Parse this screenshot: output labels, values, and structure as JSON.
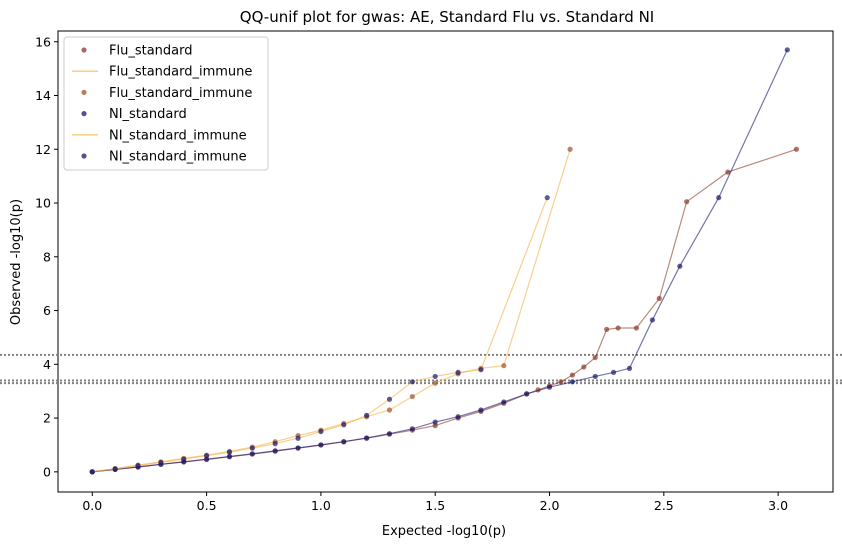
{
  "chart_data": {
    "type": "scatter",
    "title": "QQ-unif plot for gwas: AE, Standard Flu vs. Standard NI",
    "xlabel": "Expected -log10(p)",
    "ylabel": "Observed -log10(p)",
    "xlim": [
      -0.15,
      3.24
    ],
    "ylim": [
      -0.75,
      16.4
    ],
    "xticks": [
      0.0,
      0.5,
      1.0,
      1.5,
      2.0,
      2.5,
      3.0
    ],
    "xtick_labels": [
      "0.0",
      "0.5",
      "1.0",
      "1.5",
      "2.0",
      "2.5",
      "3.0"
    ],
    "yticks": [
      0,
      2,
      4,
      6,
      8,
      10,
      12,
      14,
      16
    ],
    "ytick_labels": [
      "0",
      "2",
      "4",
      "6",
      "8",
      "10",
      "12",
      "14",
      "16"
    ],
    "grid": false,
    "legend_position": "top-left",
    "hlines": [
      4.35,
      3.4,
      3.3
    ],
    "hline_color": "#808080",
    "legend": [
      {
        "label": "Flu_standard",
        "kind": "marker",
        "color": "#8b3a2a"
      },
      {
        "label": "Flu_standard_immune",
        "kind": "line",
        "color": "#f5b041"
      },
      {
        "label": "Flu_standard_immune",
        "kind": "marker",
        "color": "#a0522d"
      },
      {
        "label": "NI_standard",
        "kind": "marker",
        "color": "#191970"
      },
      {
        "label": "NI_standard_immune",
        "kind": "line",
        "color": "#f5b041"
      },
      {
        "label": "NI_standard_immune",
        "kind": "marker",
        "color": "#191970"
      }
    ],
    "series": [
      {
        "name": "Flu_standard",
        "marker_color": "#8b3a2a",
        "line_color": "#8b3a2a",
        "x": [
          0,
          0.1,
          0.2,
          0.3,
          0.4,
          0.5,
          0.6,
          0.7,
          0.8,
          0.9,
          1.0,
          1.1,
          1.2,
          1.3,
          1.4,
          1.5,
          1.6,
          1.7,
          1.8,
          1.9,
          1.95,
          2.0,
          2.05,
          2.1,
          2.15,
          2.2,
          2.25,
          2.3,
          2.38,
          2.48,
          2.6,
          2.78,
          3.08
        ],
        "y": [
          0,
          0.09,
          0.18,
          0.28,
          0.37,
          0.46,
          0.56,
          0.66,
          0.77,
          0.88,
          1.0,
          1.12,
          1.25,
          1.4,
          1.55,
          1.72,
          2.0,
          2.25,
          2.55,
          2.9,
          3.05,
          3.2,
          3.35,
          3.6,
          3.9,
          4.25,
          5.3,
          5.35,
          5.35,
          6.45,
          10.05,
          11.15,
          12.0
        ]
      },
      {
        "name": "Flu_standard_immune",
        "marker_color": "#a0522d",
        "line_color": "#f5b041",
        "x": [
          0,
          0.1,
          0.2,
          0.3,
          0.4,
          0.5,
          0.6,
          0.7,
          0.8,
          0.9,
          1.0,
          1.1,
          1.2,
          1.3,
          1.4,
          1.5,
          1.6,
          1.7,
          1.8,
          2.09
        ],
        "y": [
          0,
          0.12,
          0.25,
          0.37,
          0.5,
          0.62,
          0.76,
          0.92,
          1.12,
          1.35,
          1.55,
          1.8,
          2.05,
          2.3,
          2.8,
          3.3,
          3.65,
          3.85,
          3.95,
          12.0
        ]
      },
      {
        "name": "NI_standard",
        "marker_color": "#191970",
        "line_color": "#191970",
        "x": [
          0,
          0.1,
          0.2,
          0.3,
          0.4,
          0.5,
          0.6,
          0.7,
          0.8,
          0.9,
          1.0,
          1.1,
          1.2,
          1.3,
          1.4,
          1.5,
          1.6,
          1.7,
          1.8,
          1.9,
          2.0,
          2.1,
          2.2,
          2.28,
          2.35,
          2.45,
          2.57,
          2.74,
          3.04
        ],
        "y": [
          0,
          0.09,
          0.18,
          0.28,
          0.37,
          0.47,
          0.57,
          0.67,
          0.78,
          0.89,
          1.0,
          1.12,
          1.26,
          1.42,
          1.6,
          1.85,
          2.05,
          2.3,
          2.6,
          2.9,
          3.15,
          3.35,
          3.55,
          3.7,
          3.85,
          5.65,
          7.65,
          10.2,
          15.7
        ]
      },
      {
        "name": "NI_standard_immune",
        "marker_color": "#191970",
        "line_color": "#f5b041",
        "x": [
          0,
          0.1,
          0.2,
          0.3,
          0.4,
          0.5,
          0.6,
          0.7,
          0.8,
          0.9,
          1.0,
          1.1,
          1.2,
          1.3,
          1.4,
          1.5,
          1.6,
          1.7,
          1.99
        ],
        "y": [
          0,
          0.11,
          0.23,
          0.35,
          0.47,
          0.6,
          0.73,
          0.88,
          1.05,
          1.25,
          1.5,
          1.75,
          2.1,
          2.7,
          3.35,
          3.55,
          3.7,
          3.8,
          10.2
        ]
      }
    ]
  }
}
